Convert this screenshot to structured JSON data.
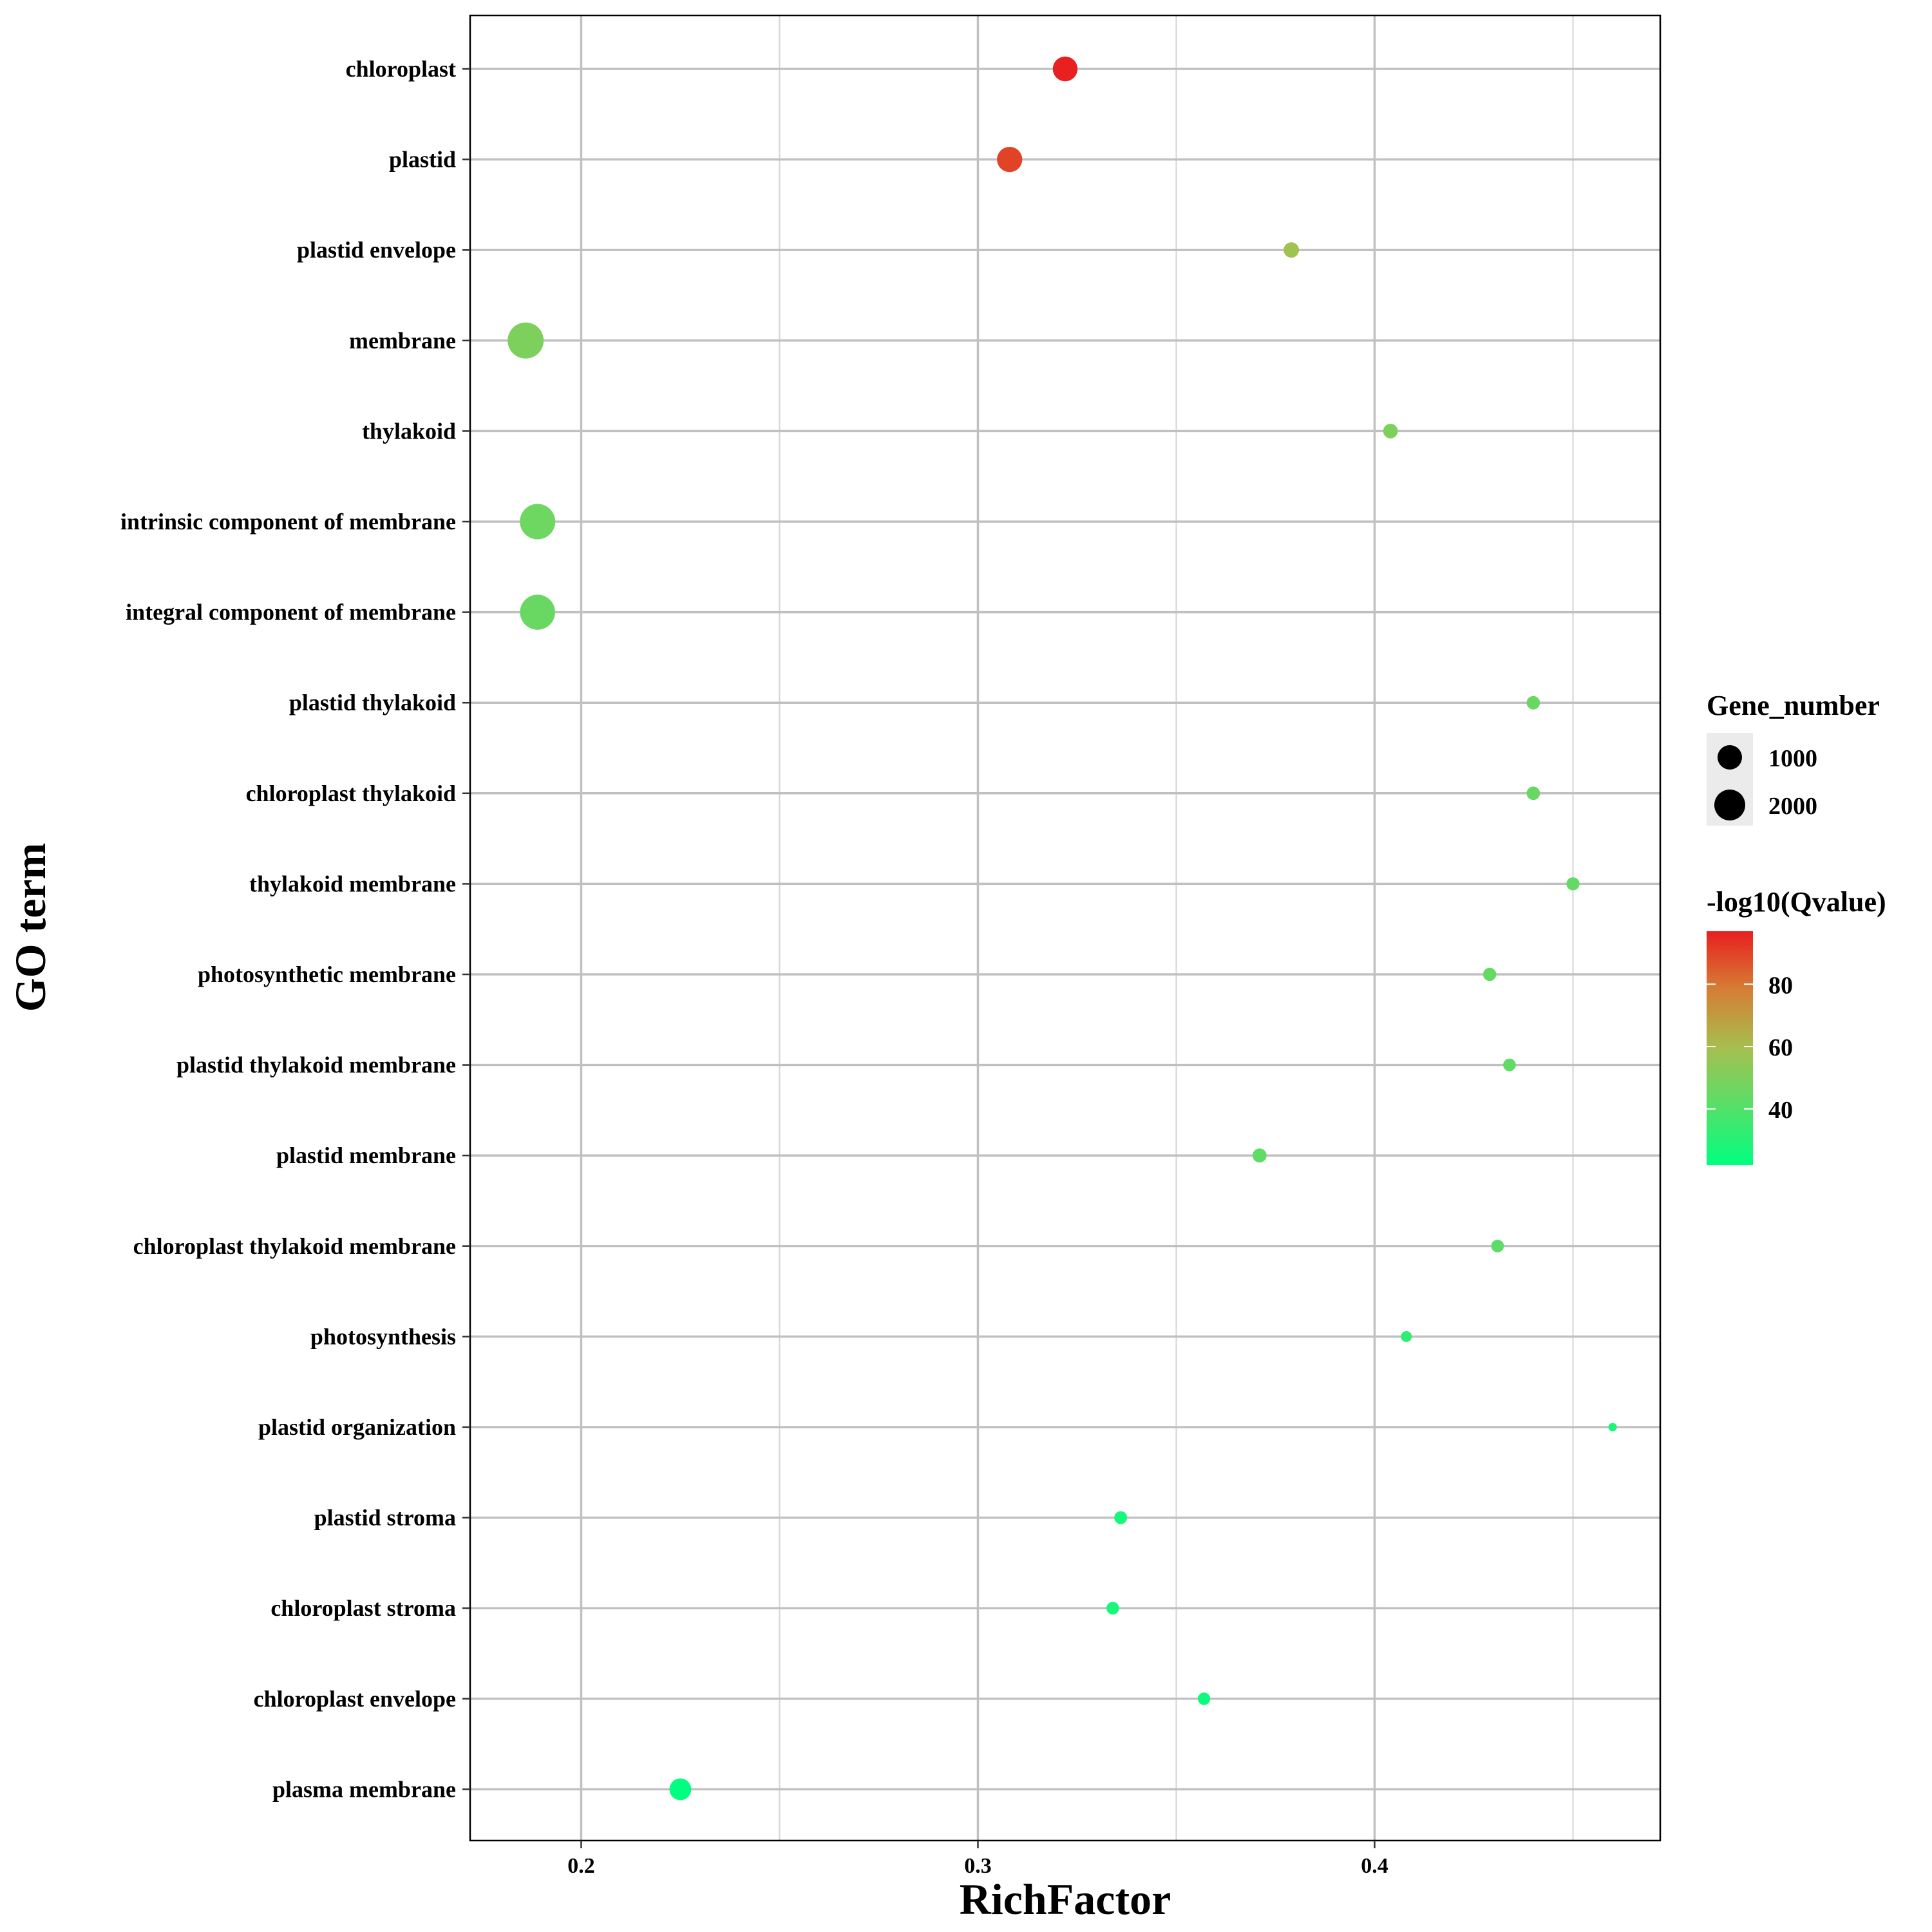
{
  "chart_data": {
    "type": "scatter",
    "xlabel": "RichFactor",
    "ylabel": "GO term",
    "xlim": [
      0.172,
      0.472
    ],
    "xticks": [
      0.2,
      0.3,
      0.4
    ],
    "xtick_labels": [
      "0.2",
      "0.3",
      "0.4"
    ],
    "grid": true,
    "legend_position": "right",
    "size_legend": {
      "title": "Gene_number",
      "entries": [
        {
          "label": "1000",
          "value": 1000
        },
        {
          "label": "2000",
          "value": 2000
        }
      ]
    },
    "color_legend": {
      "title": "-log10(Qvalue)",
      "ticks": [
        {
          "label": "80",
          "value": 80
        },
        {
          "label": "60",
          "value": 60
        },
        {
          "label": "40",
          "value": 40
        }
      ],
      "min": 22,
      "max": 97,
      "low_color": "#00ff80",
      "high_color": "#e8201f"
    },
    "points": [
      {
        "term": "chloroplast",
        "richfactor": 0.322,
        "gene_number": 1300,
        "neg_log10_q": 97
      },
      {
        "term": "plastid",
        "richfactor": 0.308,
        "gene_number": 1350,
        "neg_log10_q": 90
      },
      {
        "term": "plastid envelope",
        "richfactor": 0.379,
        "gene_number": 500,
        "neg_log10_q": 58
      },
      {
        "term": "membrane",
        "richfactor": 0.186,
        "gene_number": 2750,
        "neg_log10_q": 50
      },
      {
        "term": "thylakoid",
        "richfactor": 0.404,
        "gene_number": 450,
        "neg_log10_q": 50
      },
      {
        "term": "intrinsic component of membrane",
        "richfactor": 0.189,
        "gene_number": 2650,
        "neg_log10_q": 46
      },
      {
        "term": "integral component of membrane",
        "richfactor": 0.189,
        "gene_number": 2600,
        "neg_log10_q": 45
      },
      {
        "term": "plastid thylakoid",
        "richfactor": 0.44,
        "gene_number": 380,
        "neg_log10_q": 45
      },
      {
        "term": "chloroplast thylakoid",
        "richfactor": 0.44,
        "gene_number": 380,
        "neg_log10_q": 45
      },
      {
        "term": "thylakoid membrane",
        "richfactor": 0.45,
        "gene_number": 360,
        "neg_log10_q": 44
      },
      {
        "term": "photosynthetic membrane",
        "richfactor": 0.429,
        "gene_number": 370,
        "neg_log10_q": 44
      },
      {
        "term": "plastid thylakoid membrane",
        "richfactor": 0.434,
        "gene_number": 340,
        "neg_log10_q": 43
      },
      {
        "term": "plastid membrane",
        "richfactor": 0.371,
        "gene_number": 420,
        "neg_log10_q": 43
      },
      {
        "term": "chloroplast thylakoid membrane",
        "richfactor": 0.431,
        "gene_number": 340,
        "neg_log10_q": 42
      },
      {
        "term": "photosynthesis",
        "richfactor": 0.408,
        "gene_number": 250,
        "neg_log10_q": 32
      },
      {
        "term": "plastid organization",
        "richfactor": 0.46,
        "gene_number": 150,
        "neg_log10_q": 28
      },
      {
        "term": "plastid stroma",
        "richfactor": 0.336,
        "gene_number": 350,
        "neg_log10_q": 27
      },
      {
        "term": "chloroplast stroma",
        "richfactor": 0.334,
        "gene_number": 340,
        "neg_log10_q": 27
      },
      {
        "term": "chloroplast envelope",
        "richfactor": 0.357,
        "gene_number": 330,
        "neg_log10_q": 25
      },
      {
        "term": "plasma membrane",
        "richfactor": 0.225,
        "gene_number": 1000,
        "neg_log10_q": 22
      }
    ]
  }
}
